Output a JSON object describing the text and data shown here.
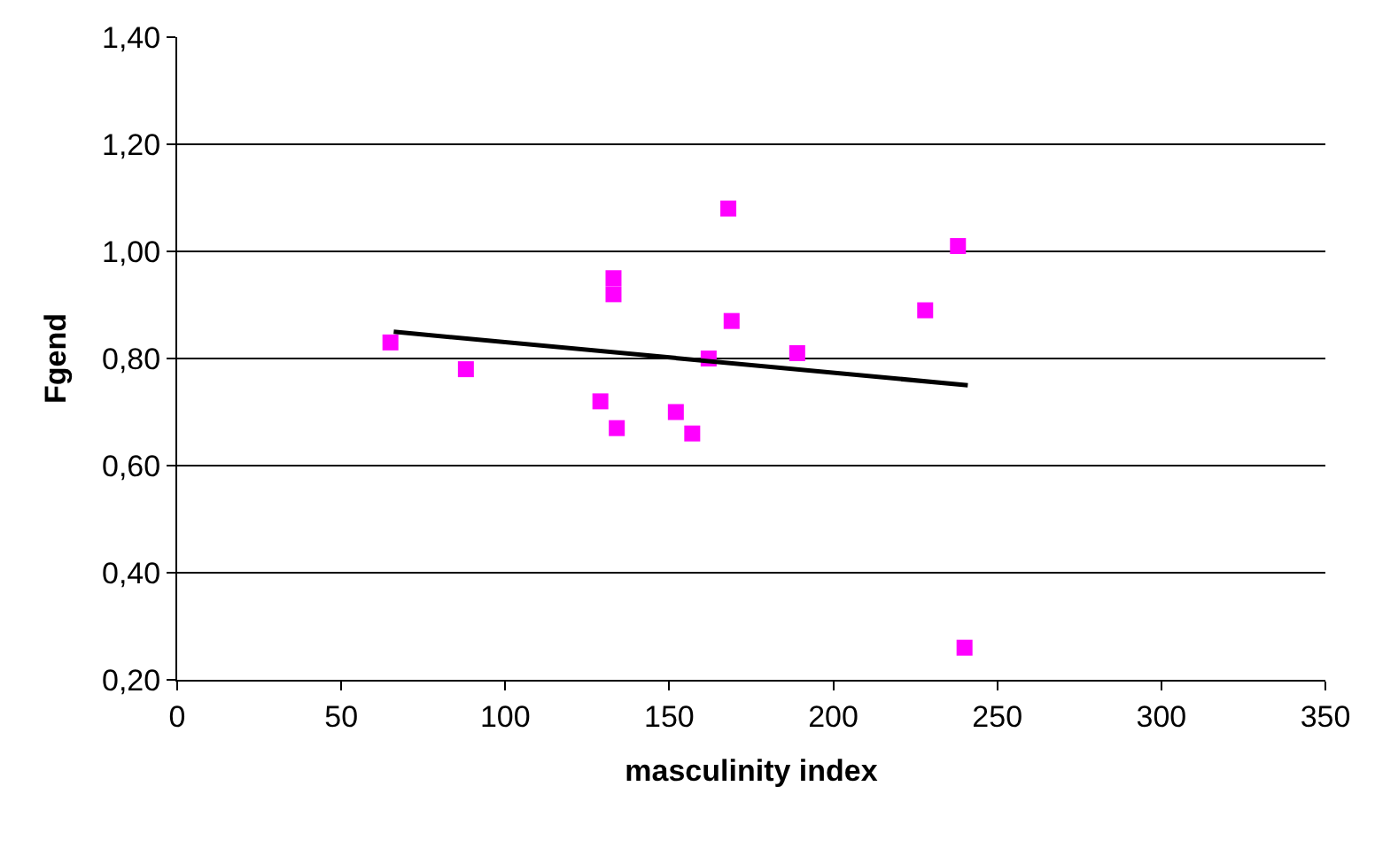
{
  "chart_data": {
    "type": "scatter",
    "xlabel": "masculinity index",
    "ylabel": "Fgend",
    "xlim": [
      0,
      350
    ],
    "xticks": [
      0,
      50,
      100,
      150,
      200,
      250,
      300,
      350
    ],
    "ylim": [
      0.2,
      1.4
    ],
    "yticks": [
      {
        "value": 0.2,
        "label": "0,20"
      },
      {
        "value": 0.4,
        "label": "0,40"
      },
      {
        "value": 0.6,
        "label": "0,60"
      },
      {
        "value": 0.8,
        "label": "0,80"
      },
      {
        "value": 1.0,
        "label": "1,00"
      },
      {
        "value": 1.2,
        "label": "1,20"
      },
      {
        "value": 1.4,
        "label": "1,40"
      }
    ],
    "grid": "y",
    "legend": false,
    "marker": "square",
    "series": [
      {
        "color": "#ff00ff",
        "x": [
          65,
          88,
          129,
          133,
          133,
          134,
          152,
          157,
          162,
          168,
          169,
          189,
          228,
          238,
          240
        ],
        "values": [
          0.83,
          0.78,
          0.72,
          0.95,
          0.92,
          0.67,
          0.7,
          0.66,
          0.8,
          1.08,
          0.87,
          0.81,
          0.89,
          1.01,
          0.26
        ]
      },
      {
        "type": "line",
        "color": "#000000",
        "marker": "none",
        "line_style": "solid",
        "x": [
          66,
          241
        ],
        "values": [
          0.85,
          0.75
        ]
      }
    ]
  }
}
